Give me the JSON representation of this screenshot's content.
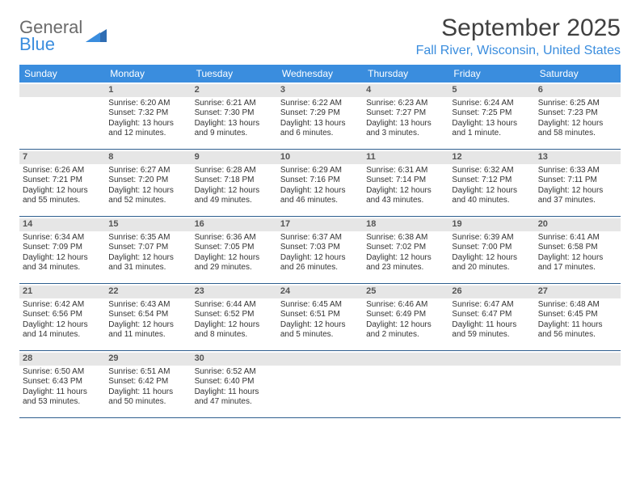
{
  "brand": {
    "name_gray": "General",
    "name_blue": "Blue"
  },
  "title": "September 2025",
  "location": "Fall River, Wisconsin, United States",
  "header_bg": "#3a8dde",
  "row_divider": "#2f5f8f",
  "daynum_bg": "#e6e6e6",
  "daysOfWeek": [
    "Sunday",
    "Monday",
    "Tuesday",
    "Wednesday",
    "Thursday",
    "Friday",
    "Saturday"
  ],
  "weeks": [
    [
      {
        "day": null
      },
      {
        "day": 1,
        "sunrise": "Sunrise: 6:20 AM",
        "sunset": "Sunset: 7:32 PM",
        "daylight": "Daylight: 13 hours and 12 minutes."
      },
      {
        "day": 2,
        "sunrise": "Sunrise: 6:21 AM",
        "sunset": "Sunset: 7:30 PM",
        "daylight": "Daylight: 13 hours and 9 minutes."
      },
      {
        "day": 3,
        "sunrise": "Sunrise: 6:22 AM",
        "sunset": "Sunset: 7:29 PM",
        "daylight": "Daylight: 13 hours and 6 minutes."
      },
      {
        "day": 4,
        "sunrise": "Sunrise: 6:23 AM",
        "sunset": "Sunset: 7:27 PM",
        "daylight": "Daylight: 13 hours and 3 minutes."
      },
      {
        "day": 5,
        "sunrise": "Sunrise: 6:24 AM",
        "sunset": "Sunset: 7:25 PM",
        "daylight": "Daylight: 13 hours and 1 minute."
      },
      {
        "day": 6,
        "sunrise": "Sunrise: 6:25 AM",
        "sunset": "Sunset: 7:23 PM",
        "daylight": "Daylight: 12 hours and 58 minutes."
      }
    ],
    [
      {
        "day": 7,
        "sunrise": "Sunrise: 6:26 AM",
        "sunset": "Sunset: 7:21 PM",
        "daylight": "Daylight: 12 hours and 55 minutes."
      },
      {
        "day": 8,
        "sunrise": "Sunrise: 6:27 AM",
        "sunset": "Sunset: 7:20 PM",
        "daylight": "Daylight: 12 hours and 52 minutes."
      },
      {
        "day": 9,
        "sunrise": "Sunrise: 6:28 AM",
        "sunset": "Sunset: 7:18 PM",
        "daylight": "Daylight: 12 hours and 49 minutes."
      },
      {
        "day": 10,
        "sunrise": "Sunrise: 6:29 AM",
        "sunset": "Sunset: 7:16 PM",
        "daylight": "Daylight: 12 hours and 46 minutes."
      },
      {
        "day": 11,
        "sunrise": "Sunrise: 6:31 AM",
        "sunset": "Sunset: 7:14 PM",
        "daylight": "Daylight: 12 hours and 43 minutes."
      },
      {
        "day": 12,
        "sunrise": "Sunrise: 6:32 AM",
        "sunset": "Sunset: 7:12 PM",
        "daylight": "Daylight: 12 hours and 40 minutes."
      },
      {
        "day": 13,
        "sunrise": "Sunrise: 6:33 AM",
        "sunset": "Sunset: 7:11 PM",
        "daylight": "Daylight: 12 hours and 37 minutes."
      }
    ],
    [
      {
        "day": 14,
        "sunrise": "Sunrise: 6:34 AM",
        "sunset": "Sunset: 7:09 PM",
        "daylight": "Daylight: 12 hours and 34 minutes."
      },
      {
        "day": 15,
        "sunrise": "Sunrise: 6:35 AM",
        "sunset": "Sunset: 7:07 PM",
        "daylight": "Daylight: 12 hours and 31 minutes."
      },
      {
        "day": 16,
        "sunrise": "Sunrise: 6:36 AM",
        "sunset": "Sunset: 7:05 PM",
        "daylight": "Daylight: 12 hours and 29 minutes."
      },
      {
        "day": 17,
        "sunrise": "Sunrise: 6:37 AM",
        "sunset": "Sunset: 7:03 PM",
        "daylight": "Daylight: 12 hours and 26 minutes."
      },
      {
        "day": 18,
        "sunrise": "Sunrise: 6:38 AM",
        "sunset": "Sunset: 7:02 PM",
        "daylight": "Daylight: 12 hours and 23 minutes."
      },
      {
        "day": 19,
        "sunrise": "Sunrise: 6:39 AM",
        "sunset": "Sunset: 7:00 PM",
        "daylight": "Daylight: 12 hours and 20 minutes."
      },
      {
        "day": 20,
        "sunrise": "Sunrise: 6:41 AM",
        "sunset": "Sunset: 6:58 PM",
        "daylight": "Daylight: 12 hours and 17 minutes."
      }
    ],
    [
      {
        "day": 21,
        "sunrise": "Sunrise: 6:42 AM",
        "sunset": "Sunset: 6:56 PM",
        "daylight": "Daylight: 12 hours and 14 minutes."
      },
      {
        "day": 22,
        "sunrise": "Sunrise: 6:43 AM",
        "sunset": "Sunset: 6:54 PM",
        "daylight": "Daylight: 12 hours and 11 minutes."
      },
      {
        "day": 23,
        "sunrise": "Sunrise: 6:44 AM",
        "sunset": "Sunset: 6:52 PM",
        "daylight": "Daylight: 12 hours and 8 minutes."
      },
      {
        "day": 24,
        "sunrise": "Sunrise: 6:45 AM",
        "sunset": "Sunset: 6:51 PM",
        "daylight": "Daylight: 12 hours and 5 minutes."
      },
      {
        "day": 25,
        "sunrise": "Sunrise: 6:46 AM",
        "sunset": "Sunset: 6:49 PM",
        "daylight": "Daylight: 12 hours and 2 minutes."
      },
      {
        "day": 26,
        "sunrise": "Sunrise: 6:47 AM",
        "sunset": "Sunset: 6:47 PM",
        "daylight": "Daylight: 11 hours and 59 minutes."
      },
      {
        "day": 27,
        "sunrise": "Sunrise: 6:48 AM",
        "sunset": "Sunset: 6:45 PM",
        "daylight": "Daylight: 11 hours and 56 minutes."
      }
    ],
    [
      {
        "day": 28,
        "sunrise": "Sunrise: 6:50 AM",
        "sunset": "Sunset: 6:43 PM",
        "daylight": "Daylight: 11 hours and 53 minutes."
      },
      {
        "day": 29,
        "sunrise": "Sunrise: 6:51 AM",
        "sunset": "Sunset: 6:42 PM",
        "daylight": "Daylight: 11 hours and 50 minutes."
      },
      {
        "day": 30,
        "sunrise": "Sunrise: 6:52 AM",
        "sunset": "Sunset: 6:40 PM",
        "daylight": "Daylight: 11 hours and 47 minutes."
      },
      {
        "day": null
      },
      {
        "day": null
      },
      {
        "day": null
      },
      {
        "day": null
      }
    ]
  ]
}
